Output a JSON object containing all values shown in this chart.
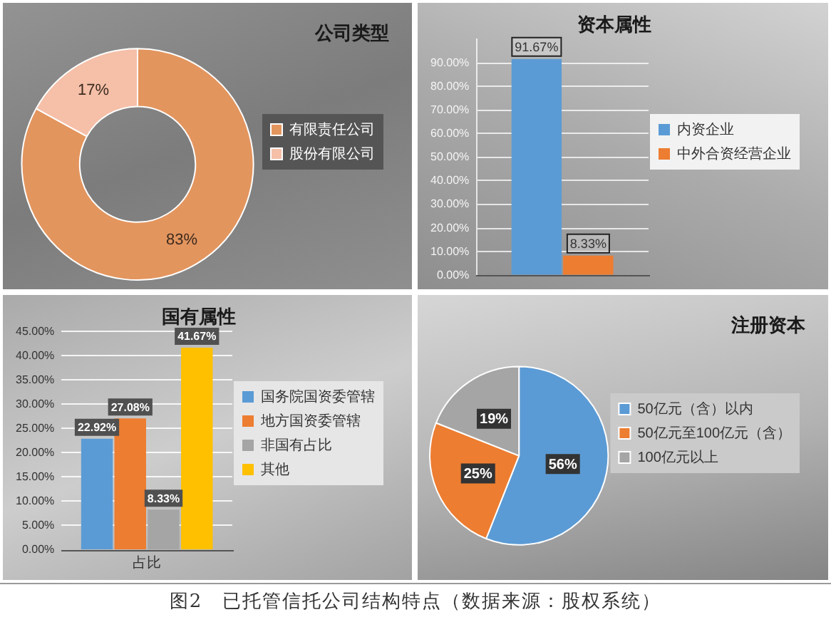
{
  "chart_data": [
    {
      "type": "donut",
      "title": "公司类型",
      "categories": [
        "有限责任公司",
        "股份有限公司"
      ],
      "values": [
        83,
        17
      ],
      "colors": [
        "#e3955e",
        "#f5bfa8"
      ],
      "value_labels": [
        "83%",
        "17%"
      ],
      "legend": "right"
    },
    {
      "type": "bar",
      "title": "资本属性",
      "categories": [
        null
      ],
      "series": [
        {
          "name": "内资企业",
          "color": "#5b9bd5",
          "values": [
            91.67
          ],
          "value_labels": [
            "91.67%"
          ]
        },
        {
          "name": "中外合资经营企业",
          "color": "#ed7d31",
          "values": [
            8.33
          ],
          "value_labels": [
            "8.33%"
          ]
        }
      ],
      "ylim": [
        0,
        100
      ],
      "yticks": [
        {
          "value": 0,
          "label": "0.00%"
        },
        {
          "value": 10,
          "label": "10.00%"
        },
        {
          "value": 20,
          "label": "20.00%"
        },
        {
          "value": 30,
          "label": "30.00%"
        },
        {
          "value": 40,
          "label": "40.00%"
        },
        {
          "value": 50,
          "label": "50.00%"
        },
        {
          "value": 60,
          "label": "60.00%"
        },
        {
          "value": 70,
          "label": "70.00%"
        },
        {
          "value": 80,
          "label": "80.00%"
        },
        {
          "value": 90,
          "label": "90.00%"
        }
      ],
      "grid": "y",
      "legend": "right"
    },
    {
      "type": "bar",
      "title": "国有属性",
      "xlabel": "占比",
      "categories": [
        null
      ],
      "series": [
        {
          "name": "国务院国资委管辖",
          "color": "#5b9bd5",
          "values": [
            22.92
          ],
          "value_labels": [
            "22.92%"
          ]
        },
        {
          "name": "地方国资委管辖",
          "color": "#ed7d31",
          "values": [
            27.08
          ],
          "value_labels": [
            "27.08%"
          ]
        },
        {
          "name": "非国有占比",
          "color": "#a5a5a5",
          "values": [
            8.33
          ],
          "value_labels": [
            "8.33%"
          ]
        },
        {
          "name": "其他",
          "color": "#ffc000",
          "values": [
            41.67
          ],
          "value_labels": [
            "41.67%"
          ]
        }
      ],
      "ylim": [
        0,
        45
      ],
      "yticks": [
        {
          "value": 0,
          "label": "0.00%"
        },
        {
          "value": 5,
          "label": "5.00%"
        },
        {
          "value": 10,
          "label": "10.00%"
        },
        {
          "value": 15,
          "label": "15.00%"
        },
        {
          "value": 20,
          "label": "20.00%"
        },
        {
          "value": 25,
          "label": "25.00%"
        },
        {
          "value": 30,
          "label": "30.00%"
        },
        {
          "value": 35,
          "label": "35.00%"
        },
        {
          "value": 40,
          "label": "40.00%"
        },
        {
          "value": 45,
          "label": "45.00%"
        }
      ],
      "grid": "y",
      "legend": "right"
    },
    {
      "type": "pie",
      "title": "注册资本",
      "categories": [
        "50亿元（含）以内",
        "50亿元至100亿元（含）",
        "100亿元以上"
      ],
      "values": [
        56,
        25,
        19
      ],
      "colors": [
        "#5b9bd5",
        "#ed7d31",
        "#a5a5a5"
      ],
      "value_labels": [
        "56%",
        "25%",
        "19%"
      ],
      "legend": "right",
      "annotations": [
        "图2　已托管信托公司结构特点（数据来源：股权系统）"
      ]
    }
  ]
}
